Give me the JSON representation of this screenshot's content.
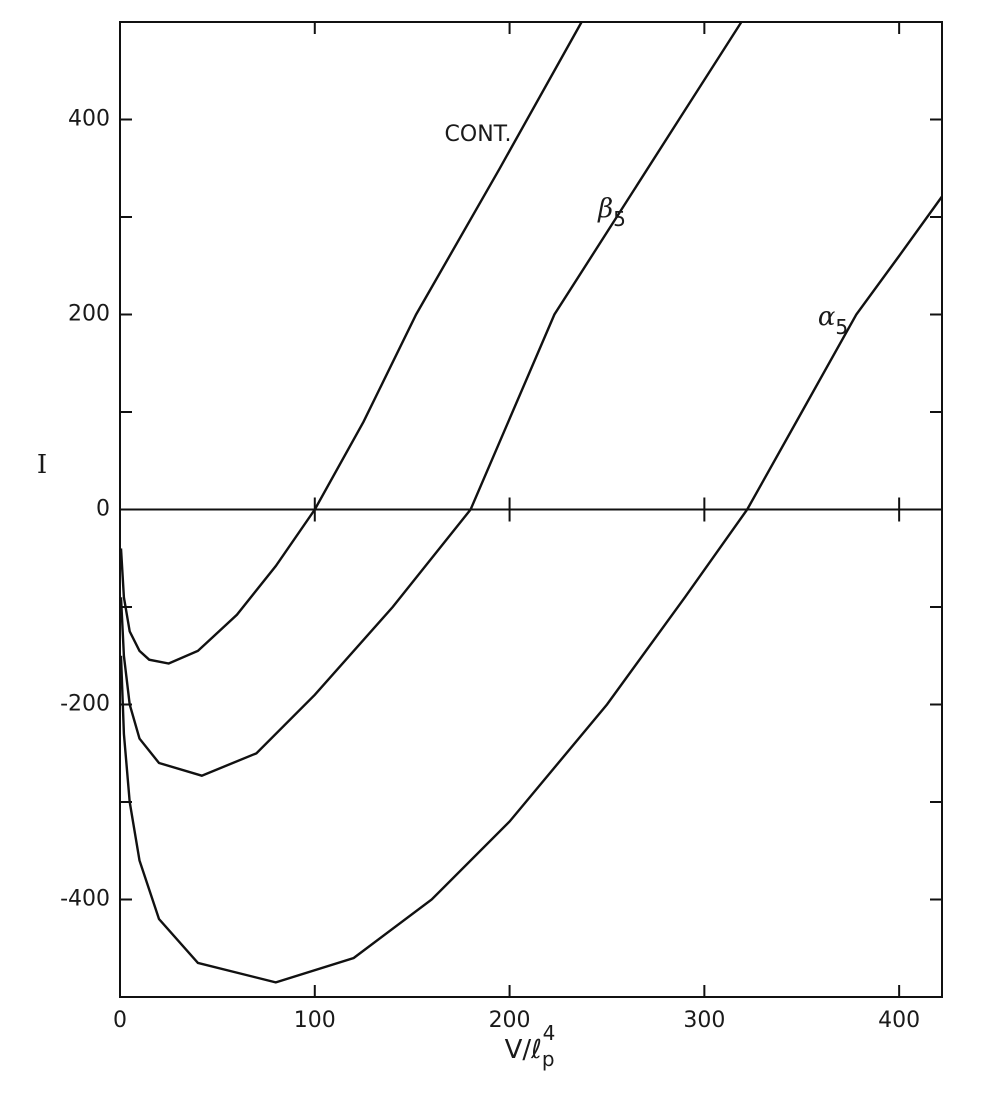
{
  "chart_data": {
    "type": "line",
    "x_label": {
      "base": "V/ℓ",
      "sub": "p",
      "sup": "4"
    },
    "y_label": "I",
    "xlim": [
      0,
      422
    ],
    "ylim": [
      -500,
      500
    ],
    "xticks": [
      0,
      100,
      200,
      300,
      400
    ],
    "yticks": [
      -400,
      -200,
      0,
      200,
      400
    ],
    "yticks_minor": [
      -300,
      -100,
      100,
      300
    ],
    "zero_line": true,
    "grid": false,
    "series": [
      {
        "name": "CONT.",
        "color": "#111111",
        "x": [
          0.5,
          2,
          5,
          10,
          15,
          25,
          40,
          60,
          80,
          100,
          125,
          152,
          195,
          237
        ],
        "values": [
          -40,
          -90,
          -125,
          -145,
          -154,
          -158,
          -145,
          -108,
          -58,
          0,
          90,
          200,
          350,
          500
        ]
      },
      {
        "name": "β",
        "sub": "5",
        "color": "#111111",
        "x": [
          0.5,
          2,
          5,
          10,
          20,
          42,
          70,
          100,
          140,
          180,
          223,
          255,
          287,
          319
        ],
        "values": [
          -90,
          -150,
          -200,
          -235,
          -260,
          -273,
          -250,
          -190,
          -100,
          0,
          200,
          300,
          400,
          500
        ]
      },
      {
        "name": "α",
        "sub": "5",
        "color": "#111111",
        "x": [
          0.5,
          2,
          5,
          10,
          20,
          40,
          80,
          120,
          160,
          200,
          250,
          290,
          322,
          350,
          378,
          400,
          422
        ],
        "values": [
          -150,
          -230,
          -300,
          -360,
          -420,
          -465,
          -485,
          -460,
          -400,
          -320,
          -200,
          -90,
          0,
          100,
          200,
          260,
          321
        ]
      }
    ]
  }
}
